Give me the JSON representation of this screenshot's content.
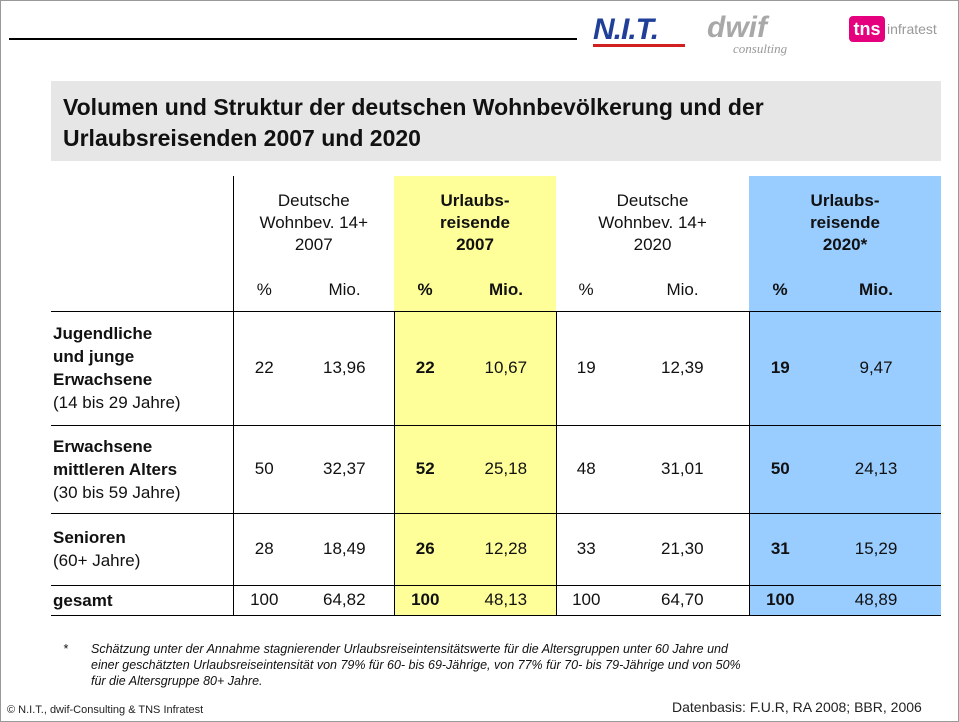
{
  "logos": {
    "nit": "N.I.T.",
    "dwif": "dwif",
    "consulting": "consulting",
    "tns": "tns",
    "infratest": "infratest"
  },
  "title": [
    "Volumen und Struktur der deutschen Wohnbevölkerung und der",
    "Urlaubsreisenden 2007 und 2020"
  ],
  "table": {
    "groups": [
      {
        "lines": [
          "Deutsche",
          "Wohnbev. 14+",
          "2007"
        ],
        "highlight": false
      },
      {
        "lines": [
          "Urlaubs-",
          "reisende",
          "2007"
        ],
        "highlight": true
      },
      {
        "lines": [
          "Deutsche",
          "Wohnbev. 14+",
          "2020"
        ],
        "highlight": false
      },
      {
        "lines": [
          "Urlaubs-",
          "reisende",
          "2020*"
        ],
        "highlight": true
      }
    ],
    "subheaders": [
      "%",
      "Mio.",
      "%",
      "Mio.",
      "%",
      "Mio.",
      "%",
      "Mio."
    ],
    "rows": [
      {
        "label": [
          "Jugendliche",
          "und junge",
          "Erwachsene"
        ],
        "sublabel": "(14 bis 29 Jahre)",
        "cells": [
          "22",
          "13,96",
          "22",
          "10,67",
          "19",
          "12,39",
          "19",
          "9,47"
        ]
      },
      {
        "label": [
          "Erwachsene",
          "mittleren Alters"
        ],
        "sublabel": "(30 bis 59 Jahre)",
        "cells": [
          "50",
          "32,37",
          "52",
          "25,18",
          "48",
          "31,01",
          "50",
          "24,13"
        ]
      },
      {
        "label": [
          "Senioren"
        ],
        "sublabel": "(60+ Jahre)",
        "cells": [
          "28",
          "18,49",
          "26",
          "12,28",
          "33",
          "21,30",
          "31",
          "15,29"
        ]
      },
      {
        "label": [
          "gesamt"
        ],
        "sublabel": null,
        "cells": [
          "100",
          "64,82",
          "100",
          "48,13",
          "100",
          "64,70",
          "100",
          "48,89"
        ]
      }
    ]
  },
  "footnote": {
    "marker": "*",
    "lines": [
      "Schätzung unter der Annahme stagnierender Urlaubsreiseintensitätswerte für die Altersgruppen unter 60 Jahre und",
      "einer geschätzten Urlaubsreiseintensität von 79% für 60- bis 69-Jährige, von 77% für 70- bis 79-Jährige und von 50%",
      "für die Altersgruppe 80+ Jahre."
    ]
  },
  "footer": {
    "copyright": "© N.I.T., dwif-Consulting & TNS Infratest",
    "source": "Datenbasis: F.U.R, RA 2008; BBR, 2006"
  }
}
